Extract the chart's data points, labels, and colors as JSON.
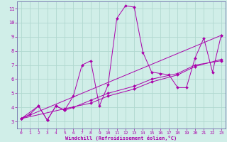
{
  "title": "",
  "xlabel": "Windchill (Refroidissement éolien,°C)",
  "background_color": "#d0eee8",
  "grid_color": "#b0d8d0",
  "line_color": "#aa00aa",
  "xlim": [
    -0.5,
    23.5
  ],
  "ylim": [
    2.5,
    11.5
  ],
  "xticks": [
    0,
    1,
    2,
    3,
    4,
    5,
    6,
    7,
    8,
    9,
    10,
    11,
    12,
    13,
    14,
    15,
    16,
    17,
    18,
    19,
    20,
    21,
    22,
    23
  ],
  "yticks": [
    3,
    4,
    5,
    6,
    7,
    8,
    9,
    10,
    11
  ],
  "line1_x": [
    0,
    1,
    2,
    3,
    4,
    5,
    6,
    7,
    8,
    9,
    10,
    11,
    12,
    13,
    14,
    15,
    16,
    17,
    18,
    19,
    20,
    21,
    22,
    23
  ],
  "line1_y": [
    3.2,
    3.5,
    4.1,
    3.1,
    4.1,
    3.8,
    4.8,
    7.0,
    7.3,
    4.1,
    5.6,
    10.3,
    11.2,
    11.1,
    7.9,
    6.5,
    6.4,
    6.3,
    5.4,
    5.4,
    7.5,
    8.9,
    6.5,
    9.1
  ],
  "line2_x": [
    0,
    2,
    3,
    4,
    5,
    6,
    8,
    10,
    13,
    15,
    18,
    20,
    23
  ],
  "line2_y": [
    3.2,
    4.1,
    3.1,
    4.1,
    3.8,
    4.0,
    4.5,
    5.0,
    5.5,
    6.0,
    6.4,
    7.0,
    7.3
  ],
  "line3_x": [
    0,
    23
  ],
  "line3_y": [
    3.2,
    9.1
  ],
  "line4_x": [
    0,
    5,
    8,
    10,
    13,
    15,
    18,
    20,
    23
  ],
  "line4_y": [
    3.2,
    3.9,
    4.3,
    4.8,
    5.3,
    5.8,
    6.3,
    6.9,
    7.4
  ]
}
